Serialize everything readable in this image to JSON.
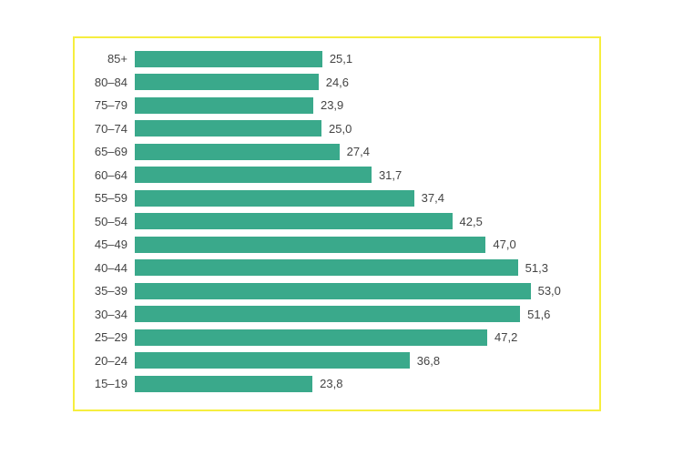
{
  "chart": {
    "type": "bar-horizontal",
    "categories": [
      "85+",
      "80–84",
      "75–79",
      "70–74",
      "65–69",
      "60–64",
      "55–59",
      "50–54",
      "45–49",
      "40–44",
      "35–39",
      "30–34",
      "25–29",
      "20–24",
      "15–19"
    ],
    "values": [
      25.1,
      24.6,
      23.9,
      25.0,
      27.4,
      31.7,
      37.4,
      42.5,
      47.0,
      51.3,
      53.0,
      51.6,
      47.2,
      36.8,
      23.8
    ],
    "value_labels": [
      "25,1",
      "24,6",
      "23,9",
      "25,0",
      "27,4",
      "31,7",
      "37,4",
      "42,5",
      "47,0",
      "51,3",
      "53,0",
      "51,6",
      "47,2",
      "36,8",
      "23,8"
    ],
    "xmax": 60,
    "bar_color": "#3aa98b",
    "border_color": "#f6ee3f",
    "background_color": "#ffffff",
    "label_color": "#444444",
    "label_fontsize": 13,
    "bar_row_height": 25.5,
    "bar_fill_ratio": 0.72,
    "bar_gap_ratio": 0.28
  }
}
